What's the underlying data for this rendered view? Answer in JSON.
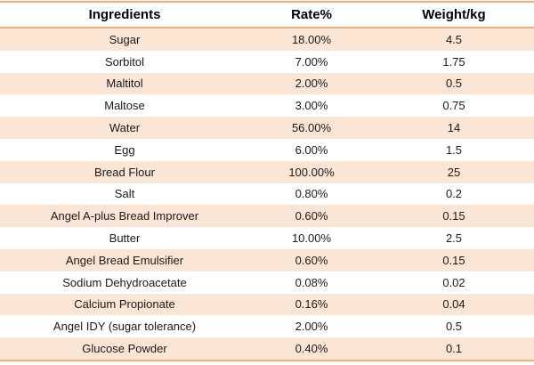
{
  "colors": {
    "accent_border": "#f4ad7b",
    "band_fill": "#fbe5d5",
    "header_text": "#000000",
    "cell_text": "#1a1a1a"
  },
  "table": {
    "columns": [
      "Ingredients",
      "Rate%",
      "Weight/kg"
    ],
    "rows": [
      [
        "Sugar",
        "18.00%",
        "4.5"
      ],
      [
        "Sorbitol",
        "7.00%",
        "1.75"
      ],
      [
        "Maltitol",
        "2.00%",
        "0.5"
      ],
      [
        "Maltose",
        "3.00%",
        "0.75"
      ],
      [
        "Water",
        "56.00%",
        "14"
      ],
      [
        "Egg",
        "6.00%",
        "1.5"
      ],
      [
        "Bread Flour",
        "100.00%",
        "25"
      ],
      [
        "Salt",
        "0.80%",
        "0.2"
      ],
      [
        "Angel A-plus Bread Improver",
        "0.60%",
        "0.15"
      ],
      [
        "Butter",
        "10.00%",
        "2.5"
      ],
      [
        "Angel Bread Emulsifier",
        "0.60%",
        "0.15"
      ],
      [
        "Sodium Dehydroacetate",
        "0.08%",
        "0.02"
      ],
      [
        "Calcium Propionate",
        "0.16%",
        "0.04"
      ],
      [
        "Angel IDY (sugar tolerance)",
        "2.00%",
        "0.5"
      ],
      [
        "Glucose Powder",
        "0.40%",
        "0.1"
      ]
    ]
  }
}
